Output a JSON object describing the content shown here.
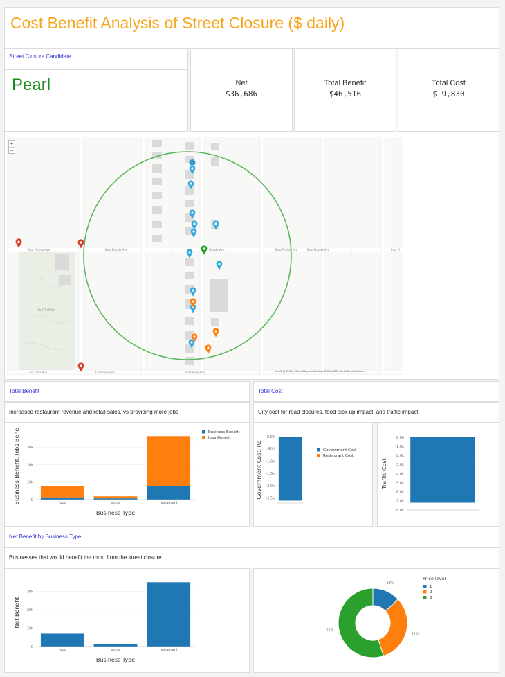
{
  "title": "Cost Benefit Analysis of Street Closure ($ daily)",
  "candidate": {
    "label": "Street Closure Candidate",
    "value": "Pearl"
  },
  "kpis": [
    {
      "label": "Net",
      "value": "$36,686"
    },
    {
      "label": "Total Benefit",
      "value": "$46,516"
    },
    {
      "label": "Total Cost",
      "value": "$−9,830"
    }
  ],
  "map": {
    "zoom_in": "+",
    "zoom_out": "−",
    "attribution": "Leaflet | © OpenStreetMap contributors © CartoDB, CartoDB attributions",
    "streets": [
      "East Florida Ave",
      "East Florida Ave",
      "Florida Ave",
      "East Florida Ave",
      "East Florida Ave",
      "East Fl",
      "East Iowa Ave",
      "East Iowa Ave",
      "East Iowa Ave",
      "South Logan St",
      "South Pennsylvania St",
      "South Pearl St",
      "South Washington St",
      "South Clarkson St",
      "South Emerson St",
      "South Ogden St"
    ],
    "park": "PLATT PARK"
  },
  "total_benefit": {
    "heading": "Total Benefit",
    "description": "Increased restaurant revenue and retail sales, vs providing more jobs"
  },
  "total_cost": {
    "heading": "Total Cost",
    "description": "City cost for road closures, food pick-up impact, and traffic impact"
  },
  "net_benefit": {
    "heading": "Net Benefit by Business Type",
    "description": "Businesses that would benefit the most from the street closure"
  },
  "colors": {
    "blue": "#1f77b4",
    "orange": "#ff7f0e",
    "green": "#2ca02c",
    "accent": "#f7a51c",
    "link": "#2a2acf"
  },
  "chart_data": [
    {
      "type": "bar",
      "stacked": true,
      "categories": [
        "food",
        "store",
        "restaurant"
      ],
      "series": [
        {
          "name": "Business Benefit",
          "values": [
            1300,
            700,
            7800
          ]
        },
        {
          "name": "Jobs Benefit",
          "values": [
            6500,
            1200,
            28500
          ]
        }
      ],
      "xlabel": "Business Type",
      "ylabel": "Business Benefit, Jobs Bene",
      "yticks": [
        "0",
        "10k",
        "20k",
        "30k"
      ],
      "ylim": [
        0,
        38000
      ],
      "legend": "top-right"
    },
    {
      "type": "bar",
      "stacked": true,
      "categories": [
        ""
      ],
      "series": [
        {
          "name": "Government Cost",
          "values": [
            -2600
          ]
        },
        {
          "name": "Restaurant Cost",
          "values": [
            0
          ]
        }
      ],
      "ylabel": "Government Cost, Re",
      "yticks": [
        "0.00",
        "-500",
        "-1.0k",
        "-1.5k",
        "-2.0k",
        "-2.5k"
      ],
      "ylim": [
        -2700,
        0
      ],
      "legend": "top-right"
    },
    {
      "type": "bar",
      "categories": [
        ""
      ],
      "values": [
        -7200
      ],
      "ylabel": "Traffic Cost",
      "yticks": [
        "0.00",
        "-1.0k",
        "-2.0k",
        "-3.0k",
        "-4.0k",
        "-5.0k",
        "-6.0k",
        "-7.0k",
        "-8.0k"
      ],
      "ylim": [
        -8000,
        0
      ]
    },
    {
      "type": "bar",
      "categories": [
        "food",
        "store",
        "restaurant"
      ],
      "values": [
        7000,
        1500,
        35000
      ],
      "xlabel": "Business Type",
      "ylabel": "Net Benefit",
      "yticks": [
        "0",
        "10k",
        "20k",
        "30k"
      ],
      "ylim": [
        0,
        37000
      ]
    },
    {
      "type": "pie",
      "donut": true,
      "title": "Price level",
      "labels": [
        "1",
        "2",
        "3"
      ],
      "values": [
        13,
        32,
        55
      ],
      "value_labels": [
        "13%",
        "32%",
        "55%"
      ],
      "legend": "top-right"
    }
  ]
}
